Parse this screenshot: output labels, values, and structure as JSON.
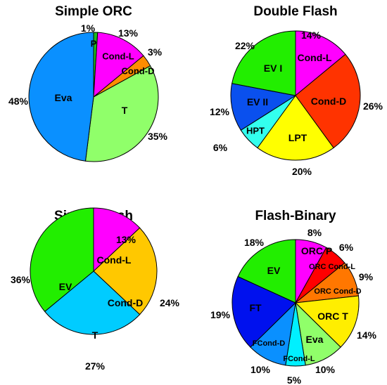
{
  "chart_data": [
    {
      "type": "pie",
      "title": "Simple ORC",
      "slices": [
        {
          "label": "P",
          "value": 1,
          "pct_label": "1%",
          "color": "#1fb81f"
        },
        {
          "label": "Cond-L",
          "value": 13,
          "pct_label": "13%",
          "color": "#ff00ff"
        },
        {
          "label": "Cond-D",
          "value": 3,
          "pct_label": "3%",
          "color": "#ff8c00"
        },
        {
          "label": "T",
          "value": 35,
          "pct_label": "35%",
          "color": "#90ff6a"
        },
        {
          "label": "Eva",
          "value": 48,
          "pct_label": "48%",
          "color": "#0a90ff"
        }
      ]
    },
    {
      "type": "pie",
      "title": "Double Flash",
      "slices": [
        {
          "label": "Cond-L",
          "value": 14,
          "pct_label": "14%",
          "color": "#ff00ff"
        },
        {
          "label": "Cond-D",
          "value": 26,
          "pct_label": "26%",
          "color": "#ff3300"
        },
        {
          "label": "LPT",
          "value": 20,
          "pct_label": "20%",
          "color": "#ffff00"
        },
        {
          "label": "HPT",
          "value": 6,
          "pct_label": "6%",
          "color": "#33ffee"
        },
        {
          "label": "EV II",
          "value": 12,
          "pct_label": "12%",
          "color": "#0a50ee"
        },
        {
          "label": "EV I",
          "value": 22,
          "pct_label": "22%",
          "color": "#22ee00"
        }
      ]
    },
    {
      "type": "pie",
      "title": "Single Flash",
      "slices": [
        {
          "label": "Cond-L",
          "value": 13,
          "pct_label": "13%",
          "color": "#ff00ff"
        },
        {
          "label": "Cond-D",
          "value": 24,
          "pct_label": "24%",
          "color": "#ffc800"
        },
        {
          "label": "T",
          "value": 27,
          "pct_label": "27%",
          "color": "#00ccff"
        },
        {
          "label": "EV",
          "value": 36,
          "pct_label": "36%",
          "color": "#22ee00"
        }
      ]
    },
    {
      "type": "pie",
      "title": "Flash-Binary",
      "slices": [
        {
          "label": "ORC P",
          "value": 8,
          "pct_label": "8%",
          "color": "#ff00ff"
        },
        {
          "label": "ORC Cond-L",
          "value": 6,
          "pct_label": "6%",
          "color": "#ff0000"
        },
        {
          "label": "ORC Cond-D",
          "value": 9,
          "pct_label": "9%",
          "color": "#ff7700"
        },
        {
          "label": "ORC T",
          "value": 14,
          "pct_label": "14%",
          "color": "#ffee00"
        },
        {
          "label": "Eva",
          "value": 10,
          "pct_label": "10%",
          "color": "#90ff6a"
        },
        {
          "label": "FCond-L",
          "value": 5,
          "pct_label": "5%",
          "color": "#00f0ff"
        },
        {
          "label": "FCond-D",
          "value": 10,
          "pct_label": "10%",
          "color": "#0a90ff"
        },
        {
          "label": "FT",
          "value": 19,
          "pct_label": "19%",
          "color": "#0011ee"
        },
        {
          "label": "EV",
          "value": 18,
          "pct_label": "18%",
          "color": "#22ee00"
        }
      ]
    }
  ]
}
